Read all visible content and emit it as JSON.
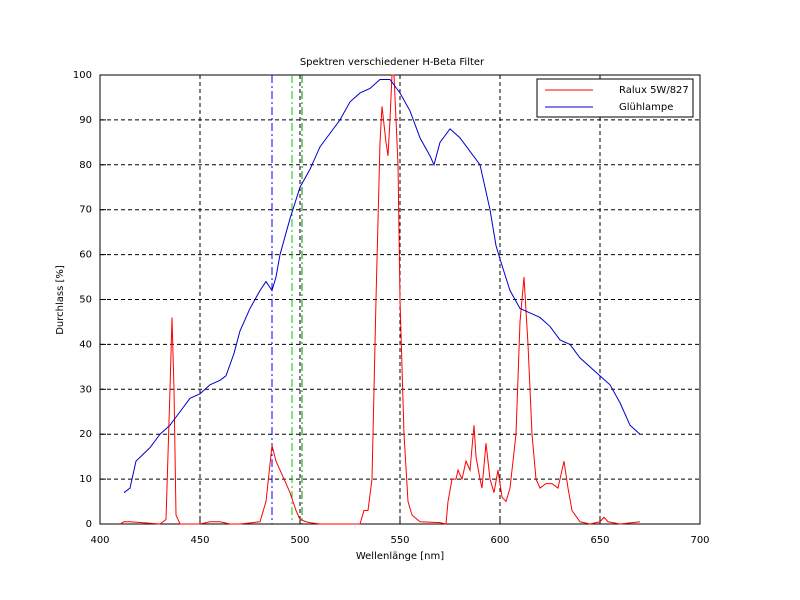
{
  "chart_data": {
    "type": "line",
    "title": "Spektren verschiedener H-Beta Filter",
    "xlabel": "Wellenlänge [nm]",
    "ylabel": "Durchlass [%]",
    "xlim": [
      400,
      700
    ],
    "ylim": [
      0,
      100
    ],
    "xticks": [
      400,
      450,
      500,
      550,
      600,
      650,
      700
    ],
    "yticks": [
      0,
      10,
      20,
      30,
      40,
      50,
      60,
      70,
      80,
      90,
      100
    ],
    "grid": true,
    "legend": "upper right",
    "vlines": [
      {
        "x": 486,
        "color": "#0000ff"
      },
      {
        "x": 496,
        "color": "#00cc00"
      },
      {
        "x": 501,
        "color": "#008000"
      }
    ],
    "series": [
      {
        "name": "Ralux 5W/827",
        "color": "#ff0000",
        "x": [
          410,
          412,
          415,
          430,
          433,
          435,
          436,
          437,
          438,
          440,
          450,
          455,
          460,
          465,
          470,
          480,
          483,
          486,
          488,
          492,
          495,
          498,
          500,
          503,
          505,
          510,
          530,
          532,
          534,
          536,
          538,
          540,
          541,
          543,
          544,
          545,
          546,
          547,
          549,
          550,
          552,
          554,
          556,
          560,
          570,
          573,
          574,
          576,
          578,
          579,
          581,
          583,
          585,
          587,
          588,
          590,
          591,
          593,
          595,
          597,
          599,
          601,
          603,
          605,
          608,
          610,
          612,
          614,
          616,
          618,
          620,
          623,
          626,
          629,
          631,
          632,
          634,
          636,
          640,
          645,
          650,
          652,
          654,
          660,
          670
        ],
        "values": [
          0,
          0.5,
          0.5,
          0,
          1,
          30,
          46,
          30,
          2,
          0,
          0,
          0.5,
          0.5,
          0,
          0,
          0.5,
          5,
          17.5,
          14,
          10,
          7,
          3,
          1,
          0.5,
          0.3,
          0,
          0,
          3,
          3,
          10,
          50,
          85,
          93,
          85,
          82,
          90,
          100,
          100,
          80,
          50,
          20,
          5,
          2,
          0.5,
          0.3,
          0,
          5,
          10,
          10,
          12,
          10,
          14,
          12,
          22,
          15,
          10,
          8,
          18,
          10,
          7,
          12,
          6,
          5,
          8,
          20,
          45,
          55,
          40,
          20,
          10,
          8,
          9,
          9,
          8,
          12,
          14,
          8,
          3,
          0.5,
          0,
          0.5,
          1.5,
          0.5,
          0,
          0.5
        ]
      },
      {
        "name": "Glühlampe",
        "color": "#0000cc",
        "x": [
          412,
          415,
          418,
          425,
          430,
          435,
          440,
          445,
          450,
          455,
          460,
          463,
          467,
          470,
          475,
          480,
          483,
          486,
          488,
          490,
          495,
          500,
          505,
          510,
          515,
          520,
          525,
          530,
          535,
          540,
          545,
          550,
          555,
          560,
          565,
          567,
          570,
          575,
          580,
          585,
          590,
          595,
          598,
          600,
          605,
          610,
          615,
          620,
          625,
          630,
          635,
          640,
          645,
          650,
          655,
          660,
          665,
          670
        ],
        "values": [
          7,
          8,
          14,
          17,
          20,
          22,
          25,
          28,
          29,
          31,
          32,
          33,
          38,
          43,
          48,
          52,
          54,
          52,
          55,
          60,
          68,
          75,
          79,
          84,
          87,
          90,
          94,
          96,
          97,
          99,
          99,
          96,
          92,
          86,
          82,
          80,
          85,
          88,
          86,
          83,
          80,
          70,
          62,
          59,
          52,
          48,
          47,
          46,
          44,
          41,
          40,
          37,
          35,
          33,
          31,
          27,
          22,
          20
        ]
      }
    ]
  }
}
